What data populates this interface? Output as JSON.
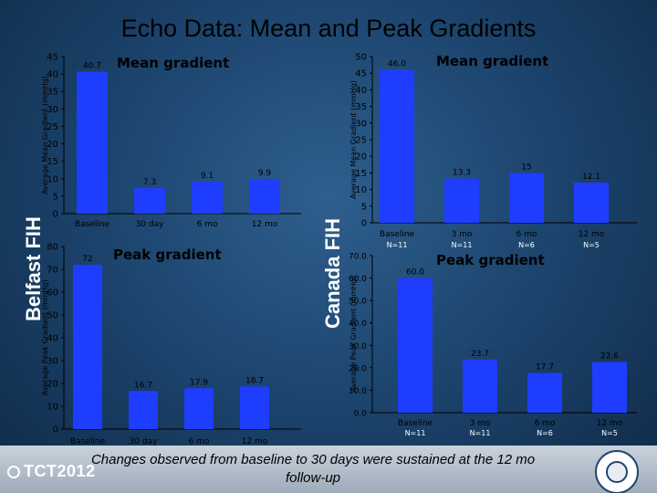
{
  "slide_title": "Echo Data: Mean and Peak Gradients",
  "row_labels": {
    "belfast": "Belfast FIH",
    "canada": "Canada FIH"
  },
  "footer": "Changes observed from baseline to 30 days were sustained at the 12 mo follow-up",
  "logo": {
    "text": "TCT2012"
  },
  "colors": {
    "bar": "#1f3dff",
    "axis": "#000000",
    "slide_background": "#1d4670"
  },
  "chart_data": [
    {
      "type": "bar",
      "id": "belfast-mean",
      "title": "Mean gradient",
      "ylabel": "Average Mean Gradient (mmHg)",
      "xlabel": "",
      "categories": [
        "Baseline",
        "30 day",
        "6 mo",
        "12 mo"
      ],
      "n_labels": [],
      "values": [
        40.7,
        7.3,
        9.1,
        9.9
      ],
      "data_labels": [
        "40.7",
        "7.3",
        "9.1",
        "9.9"
      ],
      "ylim": [
        0,
        45
      ],
      "yticks": [
        "0",
        "5",
        "10",
        "15",
        "20",
        "25",
        "30",
        "35",
        "40",
        "45"
      ],
      "grid": false,
      "legend": "none"
    },
    {
      "type": "bar",
      "id": "canada-mean",
      "title": "Mean gradient",
      "ylabel": "Average Mean Gradient (mmHg)",
      "xlabel": "",
      "categories": [
        "Baseline",
        "3 mo",
        "6 mo",
        "12 mo"
      ],
      "n_labels": [
        "N=11",
        "N=11",
        "N=6",
        "N=5"
      ],
      "values": [
        46.0,
        13.3,
        15,
        12.1
      ],
      "data_labels": [
        "46.0",
        "13.3",
        "15",
        "12.1"
      ],
      "ylim": [
        0,
        50
      ],
      "yticks": [
        "0",
        "5",
        "10",
        "15",
        "20",
        "25",
        "30",
        "35",
        "40",
        "45",
        "50"
      ],
      "grid": false,
      "legend": "none"
    },
    {
      "type": "bar",
      "id": "belfast-peak",
      "title": "Peak gradient",
      "ylabel": "Average Peak Gradient (mmHg)",
      "xlabel": "",
      "categories": [
        "Baseline",
        "30 day",
        "6 mo",
        "12 mo"
      ],
      "n_labels": [],
      "values": [
        72,
        16.7,
        17.9,
        18.7
      ],
      "data_labels": [
        "72",
        "16.7",
        "17.9",
        "18.7"
      ],
      "ylim": [
        0,
        80
      ],
      "yticks": [
        "0",
        "10",
        "20",
        "30",
        "40",
        "50",
        "60",
        "70",
        "80"
      ],
      "grid": false,
      "legend": "none"
    },
    {
      "type": "bar",
      "id": "canada-peak",
      "title": "Peak gradient",
      "ylabel": "Average Peak Gradient (mmHg)",
      "xlabel": "",
      "categories": [
        "Baseline",
        "3 mo",
        "6 mo",
        "12 mo"
      ],
      "n_labels": [
        "N=11",
        "N=11",
        "N=6",
        "N=5"
      ],
      "values": [
        60.0,
        23.7,
        17.7,
        22.6
      ],
      "data_labels": [
        "60.0",
        "23.7",
        "17.7",
        "22.6"
      ],
      "ylim": [
        0,
        70
      ],
      "yticks": [
        "0.0",
        "10.0",
        "20.0",
        "30.0",
        "40.0",
        "50.0",
        "60.0",
        "70.0"
      ],
      "grid": false,
      "legend": "none"
    }
  ]
}
